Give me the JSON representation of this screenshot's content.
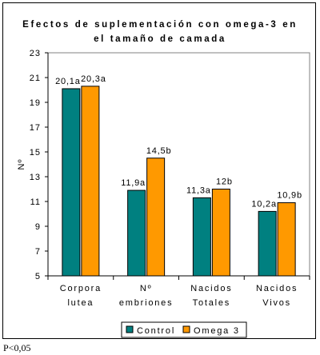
{
  "chart_data": {
    "type": "bar",
    "title": [
      "Efectos de suplementación con omega-3 en",
      "el tamaño de camada"
    ],
    "xlabel": "",
    "ylabel": "Nº",
    "ylim": [
      5,
      23
    ],
    "yticks": [
      5,
      7,
      9,
      11,
      13,
      15,
      17,
      19,
      21,
      23
    ],
    "categories": [
      [
        "Corpora",
        "lutea"
      ],
      [
        "Nº",
        "embriones"
      ],
      [
        "Nacidos",
        "Totales"
      ],
      [
        "Nacidos",
        "Vivos"
      ]
    ],
    "series": [
      {
        "name": "Control",
        "color": "#008080",
        "values": [
          20.1,
          11.9,
          11.3,
          10.2
        ],
        "labels": [
          "20,1a",
          "11,9a",
          "11,3a",
          "10,2a"
        ]
      },
      {
        "name": "Omega 3",
        "color": "#FF9900",
        "values": [
          20.3,
          14.5,
          12.0,
          10.9
        ],
        "labels": [
          "20,3a",
          "14,5b",
          "12b",
          "10,9b"
        ]
      }
    ],
    "legend_position": "bottom",
    "grid": false
  },
  "footnote": "P<0,05"
}
